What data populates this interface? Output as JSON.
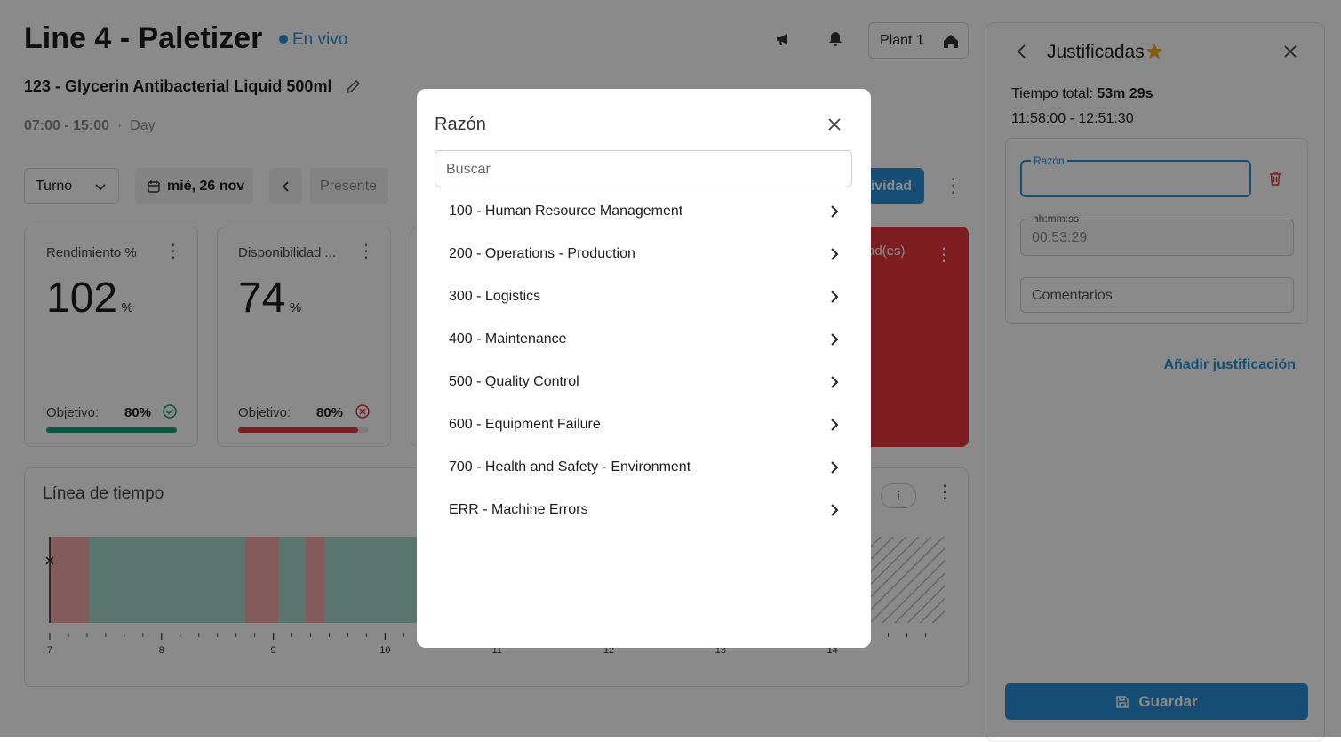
{
  "header": {
    "title": "Line 4 - Paletizer",
    "status": "En vivo",
    "product": "123 - Glycerin Antibacterial Liquid 500ml",
    "shift_time": "07:00 - 15:00",
    "shift_name": "Day",
    "plant": "Plant 1"
  },
  "toolbar": {
    "shift_select": "Turno",
    "date": "mié, 26 nov",
    "present": "Presente",
    "activity_button": "tividad"
  },
  "kpis": [
    {
      "title": "Rendimiento %",
      "value": "102",
      "unit": "%",
      "target_label": "Objetivo:",
      "target": "80%"
    },
    {
      "title": "Disponibilidad ...",
      "value": "74",
      "unit": "%",
      "target_label": "Objetivo:",
      "target": "80%"
    },
    {
      "title": "ad(es)"
    }
  ],
  "timeline": {
    "title": "Línea de tiempo",
    "info": "i",
    "ticks": [
      7,
      8,
      9,
      10,
      11,
      12,
      13,
      14
    ]
  },
  "modal": {
    "title": "Razón",
    "search_placeholder": "Buscar",
    "items": [
      "100 - Human Resource Management",
      "200 - Operations - Production",
      "300 - Logistics",
      "400 - Maintenance",
      "500 - Quality Control",
      "600 - Equipment Failure",
      "700 - Health and Safety - Environment",
      "ERR - Machine Errors"
    ]
  },
  "panel": {
    "title": "Justificadas",
    "total_label": "Tiempo total:",
    "total": "53m 29s",
    "range": "11:58:00 - 12:51:30",
    "reason_label": "Razón",
    "duration_label": "hh:mm:ss",
    "duration": "00:53:29",
    "comments_placeholder": "Comentarios",
    "add_link": "Añadir justificación",
    "save": "Guardar"
  }
}
